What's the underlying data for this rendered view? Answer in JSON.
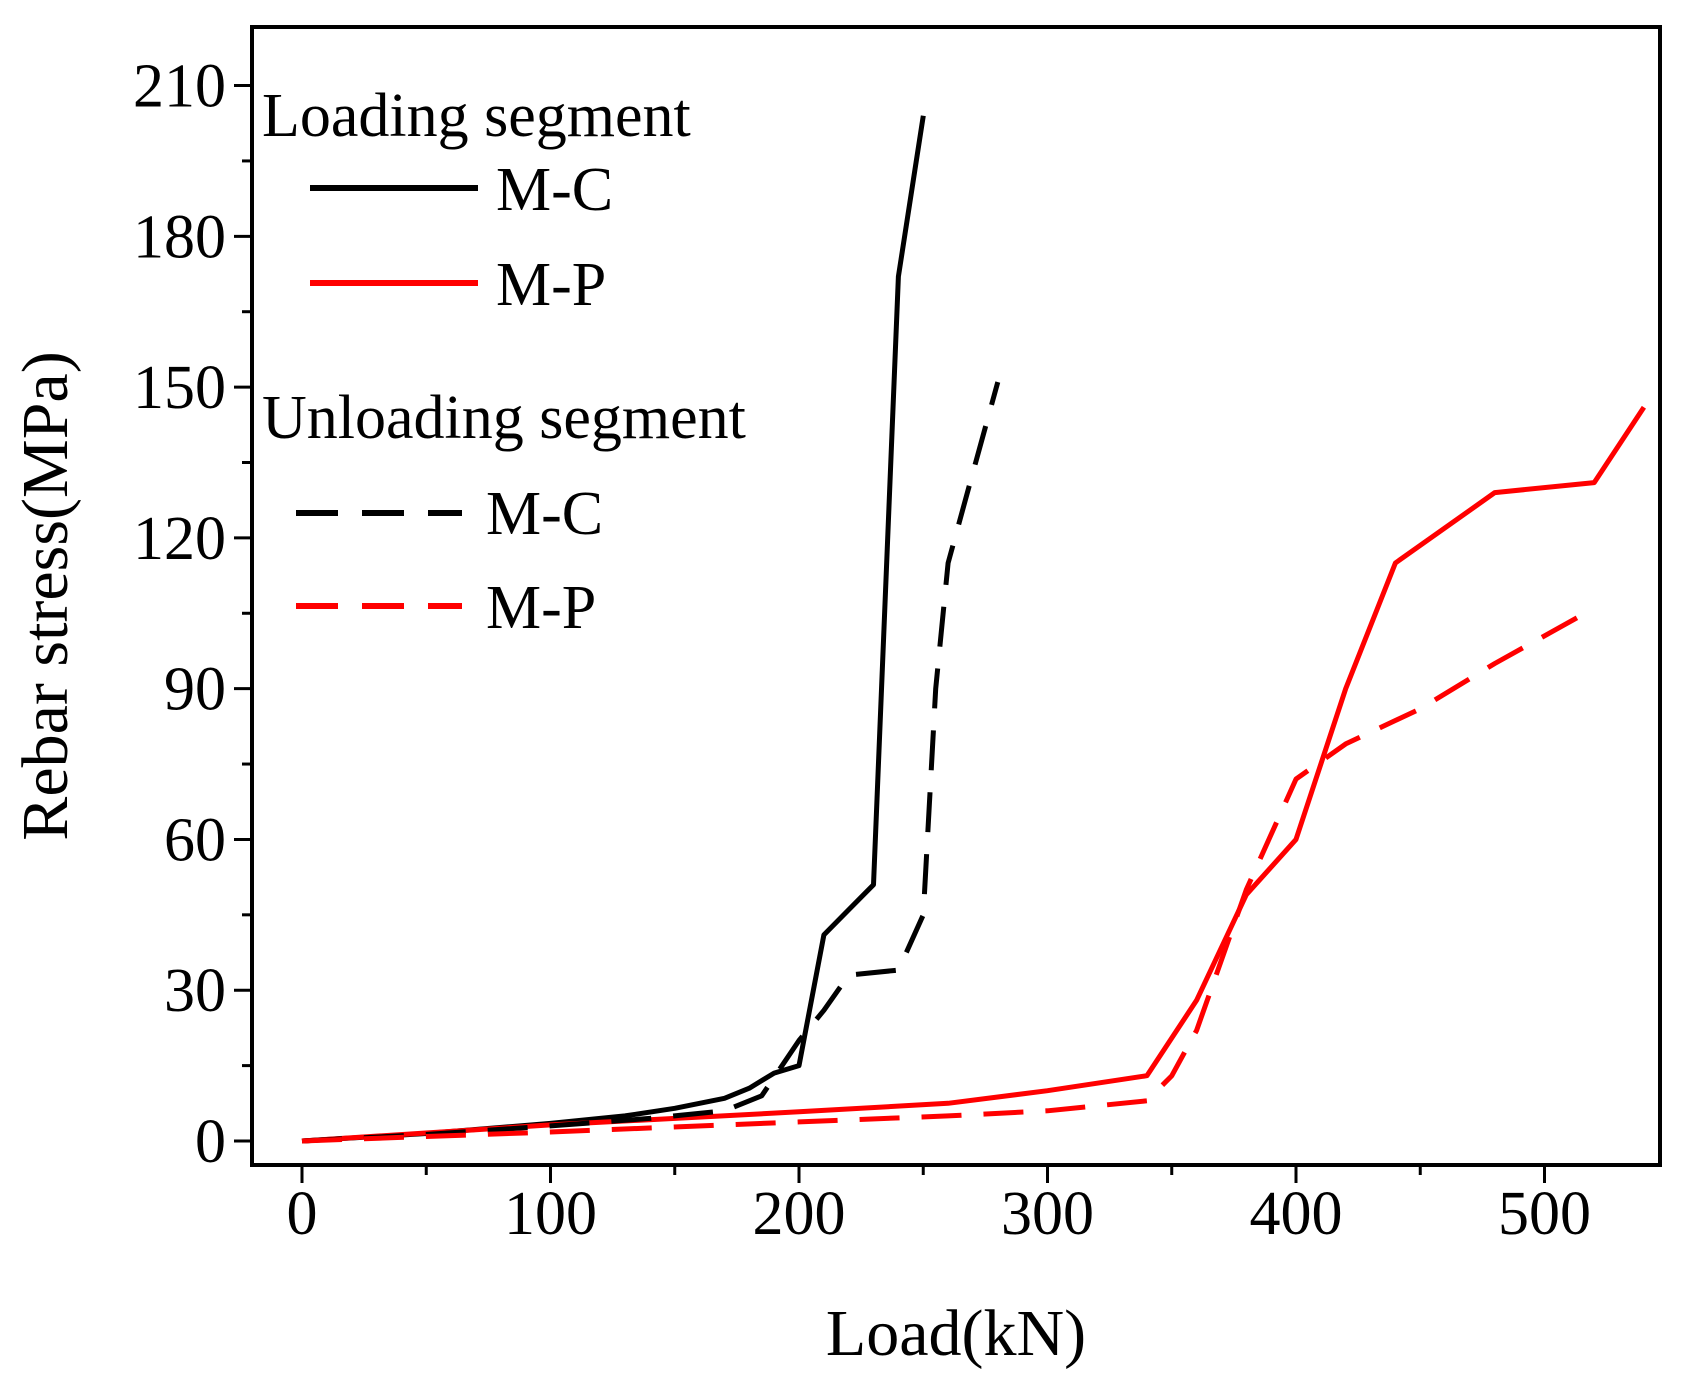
{
  "chart_data": {
    "type": "line",
    "title": "",
    "xlabel": "Load(kN)",
    "ylabel": "Rebar stress(MPa)",
    "xlim": [
      -20,
      550
    ],
    "ylim": [
      -5,
      220
    ],
    "xticks": [
      0,
      100,
      200,
      300,
      400,
      500
    ],
    "yticks": [
      0,
      30,
      60,
      90,
      120,
      150,
      180,
      210
    ],
    "x_tick_labels": [
      "0",
      "100",
      "200",
      "300",
      "400",
      "500"
    ],
    "y_tick_labels": [
      "0",
      "30",
      "60",
      "90",
      "120",
      "150",
      "180",
      "210"
    ],
    "grid": false,
    "legend": {
      "position": "top-left",
      "groups": [
        {
          "title": "Loading segment",
          "entries": [
            {
              "label": "M-C",
              "color": "#000000",
              "style": "solid"
            },
            {
              "label": "M-P",
              "color": "#ff0000",
              "style": "solid"
            }
          ]
        },
        {
          "title": "Unloading segment",
          "entries": [
            {
              "label": "M-C",
              "color": "#000000",
              "style": "dashed"
            },
            {
              "label": "M-P",
              "color": "#ff0000",
              "style": "dashed"
            }
          ]
        }
      ]
    },
    "series": [
      {
        "name": "Loading segment M-C",
        "color": "#000000",
        "style": "solid",
        "points": [
          [
            0,
            0
          ],
          [
            50,
            1.5
          ],
          [
            100,
            3.5
          ],
          [
            130,
            5
          ],
          [
            150,
            6.5
          ],
          [
            170,
            8.5
          ],
          [
            180,
            10.5
          ],
          [
            190,
            13.5
          ],
          [
            200,
            15
          ],
          [
            210,
            41
          ],
          [
            220,
            46
          ],
          [
            230,
            51
          ],
          [
            240,
            172
          ],
          [
            250,
            204
          ]
        ]
      },
      {
        "name": "Loading segment M-P",
        "color": "#ff0000",
        "style": "solid",
        "points": [
          [
            0,
            0
          ],
          [
            100,
            3.2
          ],
          [
            200,
            5.8
          ],
          [
            260,
            7.5
          ],
          [
            300,
            10
          ],
          [
            340,
            13
          ],
          [
            360,
            28
          ],
          [
            380,
            49
          ],
          [
            400,
            60
          ],
          [
            420,
            90
          ],
          [
            440,
            115
          ],
          [
            480,
            129
          ],
          [
            520,
            131
          ],
          [
            540,
            146
          ]
        ]
      },
      {
        "name": "Unloading segment M-C",
        "color": "#000000",
        "style": "dashed",
        "points": [
          [
            0,
            0
          ],
          [
            50,
            1.3
          ],
          [
            100,
            3
          ],
          [
            140,
            4.5
          ],
          [
            170,
            6
          ],
          [
            185,
            9
          ],
          [
            200,
            20
          ],
          [
            210,
            26
          ],
          [
            220,
            33
          ],
          [
            240,
            34
          ],
          [
            250,
            45
          ],
          [
            255,
            90
          ],
          [
            260,
            115
          ],
          [
            270,
            133
          ],
          [
            280,
            151
          ]
        ]
      },
      {
        "name": "Unloading segment M-P",
        "color": "#ff0000",
        "style": "dashed",
        "points": [
          [
            0,
            0
          ],
          [
            100,
            1.8
          ],
          [
            200,
            3.8
          ],
          [
            260,
            5
          ],
          [
            300,
            6
          ],
          [
            340,
            8
          ],
          [
            350,
            13
          ],
          [
            360,
            22
          ],
          [
            380,
            50
          ],
          [
            400,
            72
          ],
          [
            420,
            79
          ],
          [
            450,
            86
          ],
          [
            480,
            95
          ],
          [
            520,
            106
          ]
        ]
      }
    ]
  }
}
